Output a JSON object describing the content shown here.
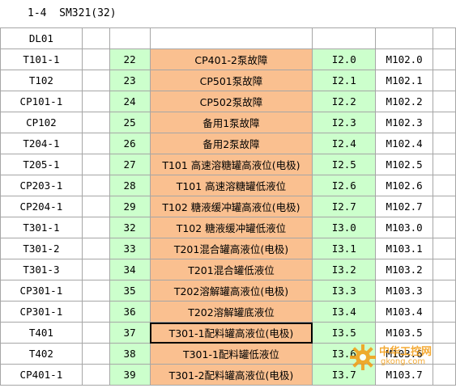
{
  "header": {
    "title": "1-4  SM321(32)"
  },
  "table": {
    "header_label": "DL01",
    "rows": [
      {
        "label": "T101-1",
        "num": "22",
        "desc": "CP401-2泵故障",
        "io": "I2.0",
        "m": "M102.0"
      },
      {
        "label": "T102",
        "num": "23",
        "desc": "CP501泵故障",
        "io": "I2.1",
        "m": "M102.1"
      },
      {
        "label": "CP101-1",
        "num": "24",
        "desc": "CP502泵故障",
        "io": "I2.2",
        "m": "M102.2"
      },
      {
        "label": "CP102",
        "num": "25",
        "desc": "备用1泵故障",
        "io": "I2.3",
        "m": "M102.3"
      },
      {
        "label": "T204-1",
        "num": "26",
        "desc": "备用2泵故障",
        "io": "I2.4",
        "m": "M102.4"
      },
      {
        "label": "T205-1",
        "num": "27",
        "desc": "T101 高速溶糖罐高液位(电极)",
        "io": "I2.5",
        "m": "M102.5"
      },
      {
        "label": "CP203-1",
        "num": "28",
        "desc": "T101 高速溶糖罐低液位",
        "io": "I2.6",
        "m": "M102.6"
      },
      {
        "label": "CP204-1",
        "num": "29",
        "desc": "T102 糖液缓冲罐高液位(电极)",
        "io": "I2.7",
        "m": "M102.7"
      },
      {
        "label": "T301-1",
        "num": "32",
        "desc": "T102 糖液缓冲罐低液位",
        "io": "I3.0",
        "m": "M103.0"
      },
      {
        "label": "T301-2",
        "num": "33",
        "desc": "T201混合罐高液位(电极)",
        "io": "I3.1",
        "m": "M103.1"
      },
      {
        "label": "T301-3",
        "num": "34",
        "desc": "T201混合罐低液位",
        "io": "I3.2",
        "m": "M103.2"
      },
      {
        "label": "CP301-1",
        "num": "35",
        "desc": "T202溶解罐高液位(电极)",
        "io": "I3.3",
        "m": "M103.3"
      },
      {
        "label": "CP301-1",
        "num": "36",
        "desc": "T202溶解罐底液位",
        "io": "I3.4",
        "m": "M103.4"
      },
      {
        "label": "T401",
        "num": "37",
        "desc": "T301-1配料罐高液位(电极)",
        "io": "I3.5",
        "m": "M103.5"
      },
      {
        "label": "T402",
        "num": "38",
        "desc": "T301-1配料罐低液位",
        "io": "I3.6",
        "m": "M103.6"
      },
      {
        "label": "CP401-1",
        "num": "39",
        "desc": "T301-2配料罐高液位(电极)",
        "io": "I3.7",
        "m": "M103.7"
      }
    ]
  },
  "watermark": {
    "text": "中华工控网",
    "sub": "gkong.com"
  },
  "colors": {
    "green_fill": "#ccffcc",
    "orange_fill": "#fac090",
    "grid_line": "#a6a6a6"
  }
}
